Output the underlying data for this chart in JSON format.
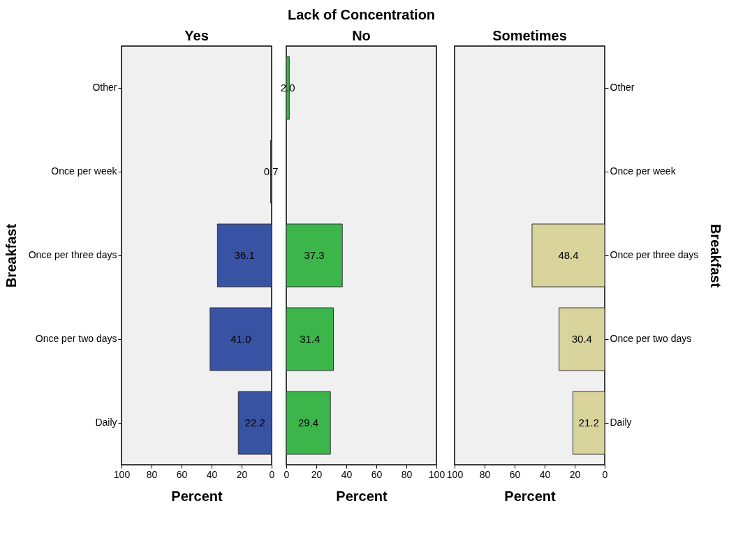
{
  "chart_data": [
    {
      "type": "bar",
      "orientation": "horizontal",
      "subtitle": "Yes",
      "xlabel": "Percent",
      "ylabel": "Breakfast",
      "categories": [
        "Other",
        "Once per week",
        "Once per three days",
        "Once per two days",
        "Daily"
      ],
      "values": [
        null,
        0.7,
        36.1,
        41.0,
        22.2
      ],
      "value_labels": [
        null,
        "0.7",
        "36.1",
        "41.0",
        "22.2"
      ],
      "color": "#3953a4",
      "xlim": [
        100,
        0
      ],
      "xticks": [
        100,
        80,
        60,
        40,
        20,
        0
      ]
    },
    {
      "type": "bar",
      "orientation": "horizontal",
      "title": "Lack of Concentration",
      "subtitle": "No",
      "xlabel": "Percent",
      "values": [
        2.0,
        null,
        37.3,
        31.4,
        29.4
      ],
      "value_labels": [
        "2.0",
        null,
        "37.3",
        "31.4",
        "29.4"
      ],
      "color": "#3cb54a",
      "xlim": [
        0,
        100
      ],
      "xticks": [
        0,
        20,
        40,
        60,
        80,
        100
      ],
      "tick_labels": "x"
    },
    {
      "type": "bar",
      "orientation": "horizontal",
      "subtitle": "Sometimes",
      "xlabel": "Percent",
      "ylabel": "Breakfast",
      "categories": [
        "Other",
        "Once per week",
        "Once per three days",
        "Once per two days",
        "Daily"
      ],
      "values": [
        null,
        null,
        48.4,
        30.4,
        21.2
      ],
      "value_labels": [
        null,
        null,
        "48.4",
        "30.4",
        "21.2"
      ],
      "color": "#d8d49c",
      "xlim": [
        100,
        0
      ],
      "xticks": [
        100,
        80,
        60,
        40,
        20,
        0
      ]
    }
  ]
}
